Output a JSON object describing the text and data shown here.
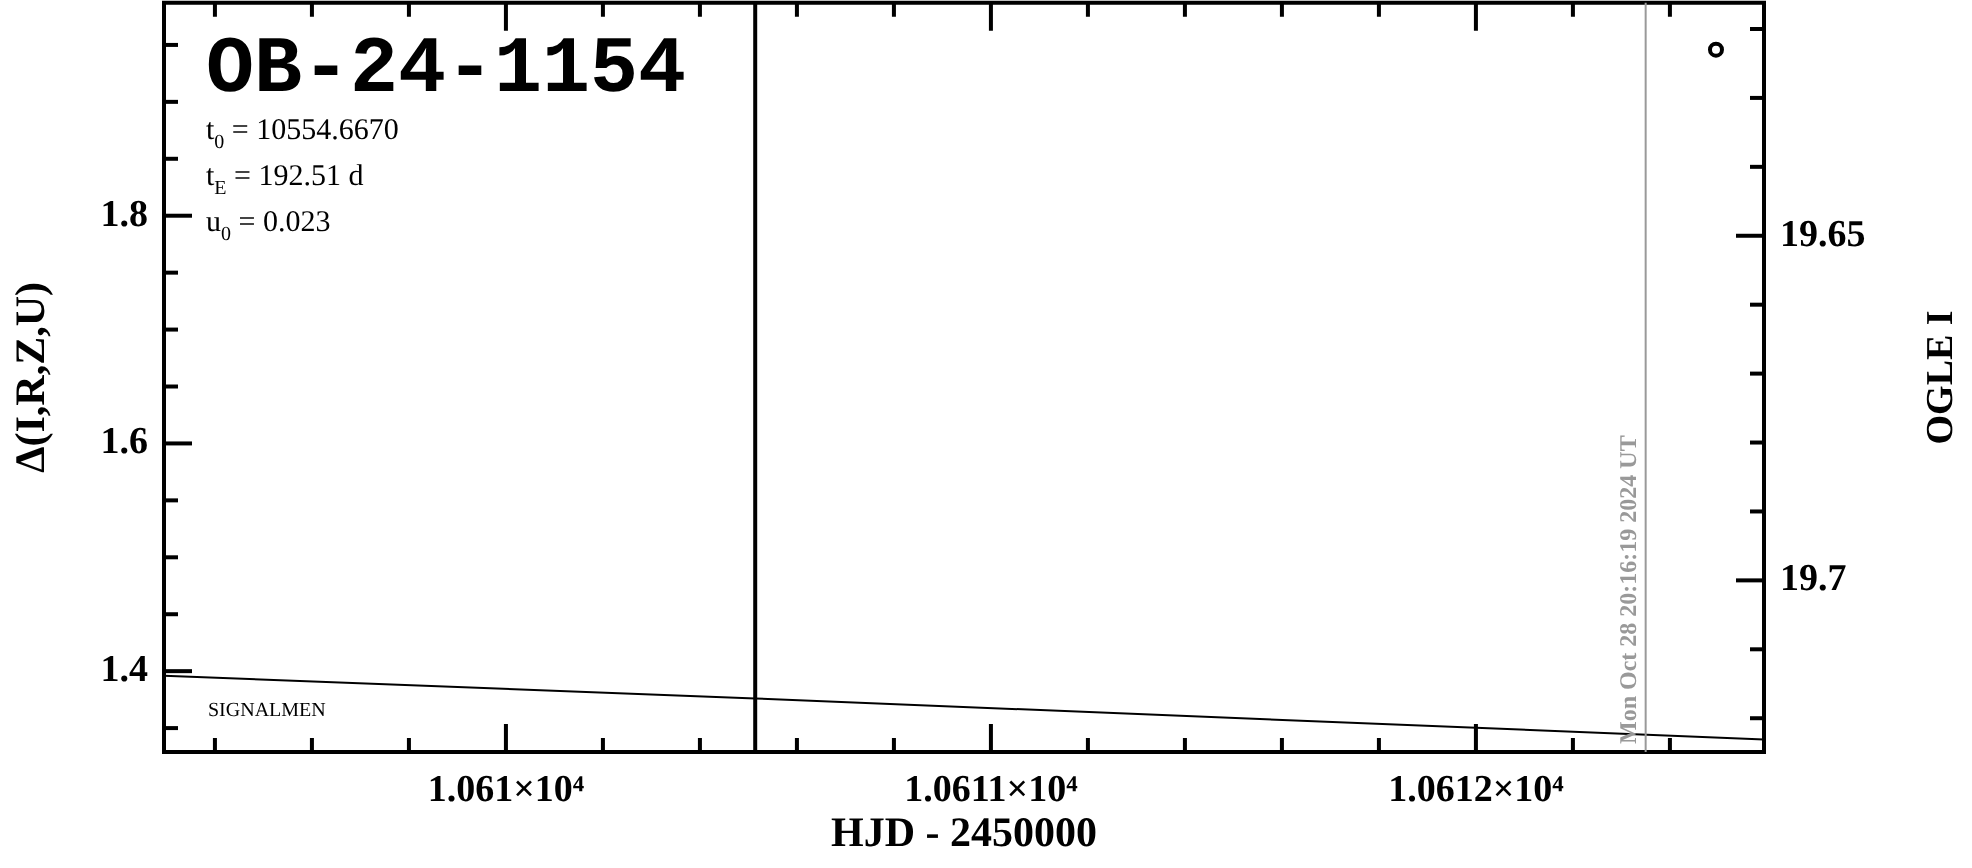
{
  "chart_data": {
    "type": "line",
    "title": "OB-24-1154",
    "xlabel": "HJD - 2450000",
    "ylabel": "Δ(I,R,Z,U)",
    "y2label": "OGLE I",
    "annotations": [
      "t$_{0}$ = 10554.6670",
      "t$_{E}$ = 192.51 d",
      "u$_{0}$ = 0.023",
      "SIGNALMEN",
      {
        "text": "Mon Oct 28 20:16:19 2024 UT",
        "x": 10612.35,
        "y": 1.329
      }
    ],
    "series": [
      {
        "color": "#000000",
        "marker": "none",
        "x": [
          10609.295,
          10610.514,
          10612.594
        ],
        "values": [
          1.396,
          1.376,
          1.34
        ]
      },
      {
        "type": "scatter",
        "color": "#000000",
        "marker": "circle",
        "axis": "y2",
        "x": [
          10612.495
        ],
        "values": [
          19.623
        ]
      }
    ],
    "xlim": [
      10609.295,
      10612.594
    ],
    "xticks": [
      {
        "value": 10609.4,
        "label": null
      },
      {
        "value": 10609.6,
        "label": null
      },
      {
        "value": 10609.8,
        "label": null
      },
      {
        "value": 10610,
        "label": "1.061×10⁴"
      },
      {
        "value": 10610.2,
        "label": null
      },
      {
        "value": 10610.4,
        "label": null
      },
      {
        "value": 10610.6,
        "label": null
      },
      {
        "value": 10610.8,
        "label": null
      },
      {
        "value": 10611,
        "label": "1.0611×10⁴"
      },
      {
        "value": 10611.2,
        "label": null
      },
      {
        "value": 10611.4,
        "label": null
      },
      {
        "value": 10611.6,
        "label": null
      },
      {
        "value": 10611.8,
        "label": null
      },
      {
        "value": 10612,
        "label": "1.0612×10⁴"
      },
      {
        "value": 10612.2,
        "label": null
      },
      {
        "value": 10612.4,
        "label": null
      }
    ],
    "ylim": [
      1.329,
      1.987
    ],
    "yticks": [
      {
        "value": 1.35,
        "label": null
      },
      1.4,
      {
        "value": 1.45,
        "label": null
      },
      {
        "value": 1.5,
        "label": null
      },
      {
        "value": 1.55,
        "label": null
      },
      1.6,
      {
        "value": 1.65,
        "label": null
      },
      {
        "value": 1.7,
        "label": null
      },
      {
        "value": 1.75,
        "label": null
      },
      1.8,
      {
        "value": 1.85,
        "label": null
      },
      {
        "value": 1.9,
        "label": null
      },
      {
        "value": 1.95,
        "label": null
      }
    ],
    "y2lim": [
      19.7249,
      19.6162
    ],
    "y2ticks": [
      {
        "value": 19.62,
        "label": null
      },
      {
        "value": 19.63,
        "label": null
      },
      {
        "value": 19.64,
        "label": null
      },
      19.65,
      {
        "value": 19.66,
        "label": null
      },
      {
        "value": 19.67,
        "label": null
      },
      {
        "value": 19.68,
        "label": null
      },
      {
        "value": 19.69,
        "label": null
      },
      19.7,
      {
        "value": 19.71,
        "label": null
      },
      {
        "value": 19.72,
        "label": null
      }
    ],
    "ref_lines": [
      {
        "axis": "x",
        "value": 10610.514,
        "color": "#000000"
      },
      {
        "axis": "x",
        "value": 10612.35,
        "color": "#999999"
      }
    ],
    "grid": false,
    "legend": false
  }
}
